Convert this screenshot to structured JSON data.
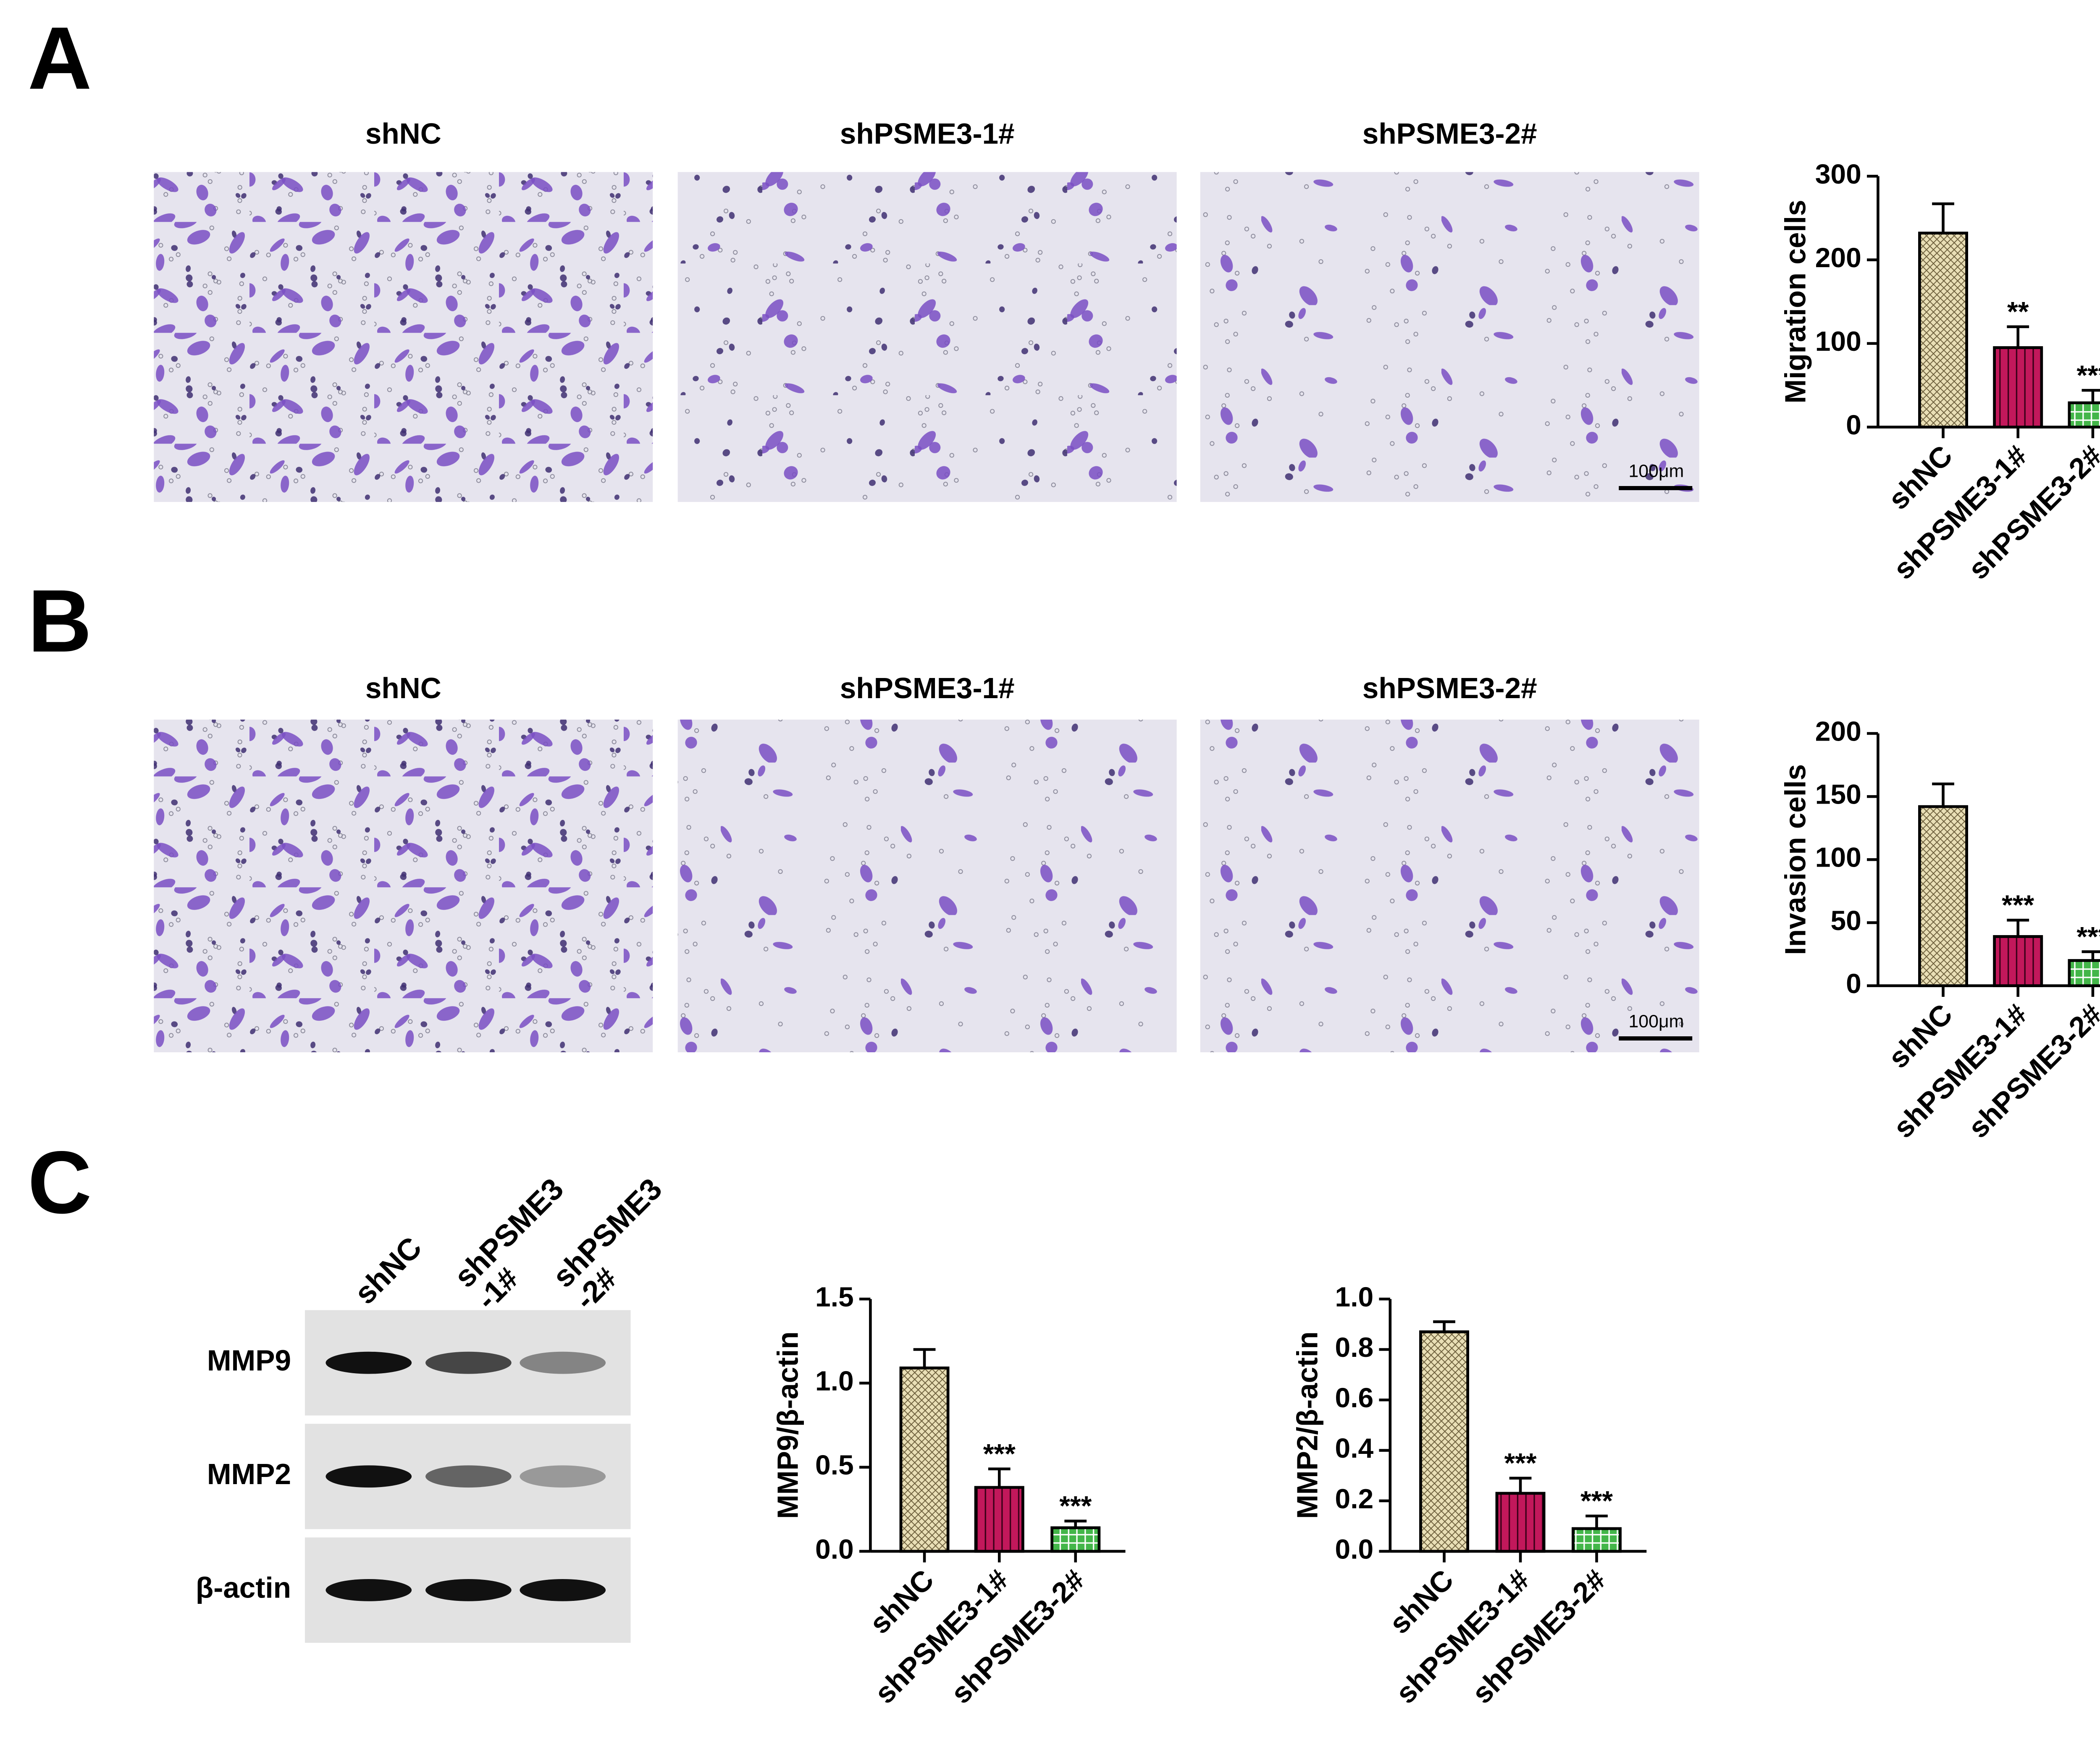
{
  "panels": [
    {
      "label": "A",
      "image_titles": [
        "shNC",
        "shPSME3-1#",
        "shPSME3-2#"
      ],
      "scale_bar": "100μm"
    },
    {
      "label": "B",
      "image_titles": [
        "shNC",
        "shPSME3-1#",
        "shPSME3-2#"
      ],
      "scale_bar": "100μm"
    },
    {
      "label": "C",
      "blot_lanes": [
        [
          "shNC"
        ],
        [
          "shPSME3",
          "-1#"
        ],
        [
          "shPSME3",
          "-2#"
        ]
      ],
      "blot_rows": [
        "MMP9",
        "MMP2",
        "β-actin"
      ]
    }
  ],
  "chart_data": [
    {
      "type": "bar",
      "y_label": "Migration cells",
      "categories": [
        "shNC",
        "shPSME3-1#",
        "shPSME3-2#"
      ],
      "values": [
        232,
        95,
        29
      ],
      "errors": [
        35,
        25,
        15
      ],
      "annotations": [
        null,
        "**",
        "***"
      ],
      "colors": [
        "#e9dfb6",
        "#c2185b",
        "#43b649"
      ],
      "ylim": [
        0,
        300
      ],
      "yticks": [
        0,
        100,
        200,
        300
      ]
    },
    {
      "type": "bar",
      "y_label": "Invasion cells",
      "categories": [
        "shNC",
        "shPSME3-1#",
        "shPSME3-2#"
      ],
      "values": [
        142,
        39,
        20
      ],
      "errors": [
        18,
        13,
        7
      ],
      "annotations": [
        null,
        "***",
        "***"
      ],
      "colors": [
        "#e9dfb6",
        "#c2185b",
        "#43b649"
      ],
      "ylim": [
        0,
        200
      ],
      "yticks": [
        0,
        50,
        100,
        150,
        200
      ]
    },
    {
      "type": "bar",
      "y_label": "MMP9/β-actin",
      "categories": [
        "shNC",
        "shPSME3-1#",
        "shPSME3-2#"
      ],
      "values": [
        1.09,
        0.38,
        0.14
      ],
      "errors": [
        0.11,
        0.11,
        0.04
      ],
      "annotations": [
        null,
        "***",
        "***"
      ],
      "colors": [
        "#e9dfb6",
        "#c2185b",
        "#43b649"
      ],
      "ylim": [
        0,
        1.5
      ],
      "yticks": [
        {
          "value": 0,
          "label": "0.0"
        },
        0.5,
        {
          "value": 1,
          "label": "1.0"
        },
        1.5
      ]
    },
    {
      "type": "bar",
      "y_label": "MMP2/β-actin",
      "categories": [
        "shNC",
        "shPSME3-1#",
        "shPSME3-2#"
      ],
      "values": [
        0.87,
        0.23,
        0.09
      ],
      "errors": [
        0.04,
        0.06,
        0.05
      ],
      "annotations": [
        null,
        "***",
        "***"
      ],
      "colors": [
        "#e9dfb6",
        "#c2185b",
        "#43b649"
      ],
      "ylim": [
        0,
        1.0
      ],
      "yticks": [
        {
          "value": 0,
          "label": "0.0"
        },
        0.2,
        0.4,
        0.6,
        0.8,
        {
          "value": 1,
          "label": "1.0"
        }
      ]
    }
  ]
}
